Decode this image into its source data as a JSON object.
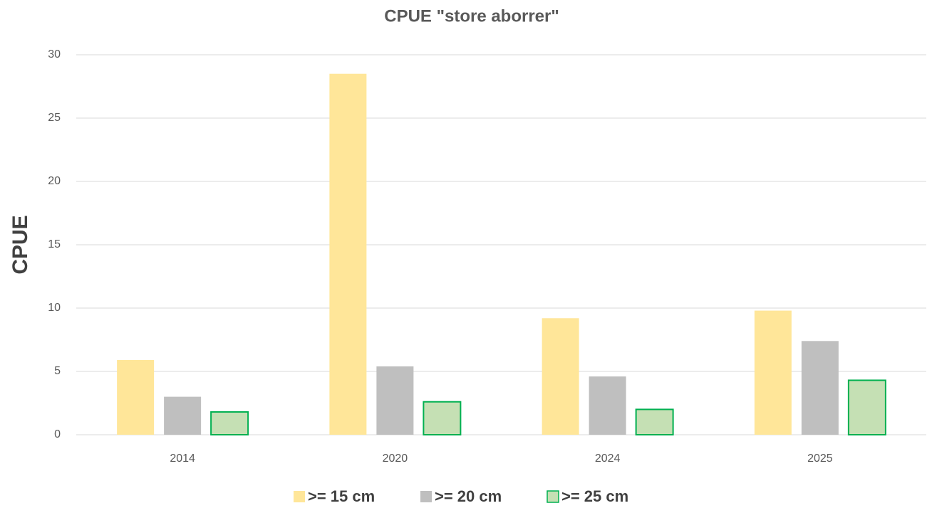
{
  "chart_data": {
    "type": "bar",
    "title": "CPUE \"store aborrer\"",
    "y_label": "CPUE",
    "categories": [
      "2014",
      "2020",
      "2024",
      "2025"
    ],
    "series": [
      {
        "name": ">= 15 cm",
        "color": "#ffe699",
        "values": [
          5.9,
          28.5,
          9.2,
          9.8
        ]
      },
      {
        "name": ">= 20 cm",
        "color": "#bfbfbf",
        "values": [
          3.0,
          5.4,
          4.6,
          7.4
        ]
      },
      {
        "name": ">= 25 cm",
        "color": "#c5e0b4",
        "edgecolor": "#00b050",
        "values": [
          1.8,
          2.6,
          2.0,
          4.3
        ]
      }
    ],
    "ylim": [
      0,
      30
    ],
    "yticks": [
      0,
      5,
      10,
      15,
      20,
      25,
      30
    ],
    "grid": true,
    "legend": "bottom"
  }
}
